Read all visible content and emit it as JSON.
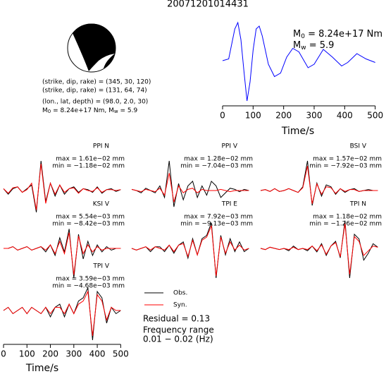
{
  "title": "20071201014431",
  "source": {
    "fault_plane_1": "(strike, dip, rake) = (345, 30, 120)",
    "fault_plane_2": "(strike, dip, rake) = (131, 64, 74)",
    "location": "(lon., lat, depth) = (98.0, 2.0, 30)",
    "moment_symbol": "M",
    "moment_subscript": "0",
    "moment_text": " = 8.24e+17 Nm, ",
    "magnitude_symbol": "M",
    "magnitude_subscript": "w",
    "magnitude_text": " = 5.9"
  },
  "chart_data": [
    {
      "type": "line",
      "color": "#0000ff",
      "annotation_moment_symbol": "M",
      "annotation_moment_subscript": "0",
      "annotation_moment_text": " = 8.24e+17 Nm",
      "annotation_magnitude_symbol": "M",
      "annotation_magnitude_subscript": "w",
      "annotation_magnitude_text": " = 5.9",
      "x": [
        0,
        20,
        40,
        50,
        60,
        70,
        80,
        90,
        100,
        110,
        120,
        130,
        150,
        170,
        190,
        210,
        230,
        250,
        280,
        300,
        330,
        360,
        390,
        410,
        440,
        470,
        500
      ],
      "values": [
        0,
        0.05,
        0.9,
        1.08,
        0.6,
        -0.3,
        -1.14,
        -0.6,
        0.3,
        0.9,
        0.98,
        0.7,
        -0.1,
        -0.45,
        -0.35,
        0.1,
        0.35,
        0.25,
        -0.2,
        -0.1,
        0.32,
        0.1,
        -0.15,
        -0.05,
        0.2,
        0.05,
        -0.05
      ],
      "xlim": [
        0,
        510
      ],
      "xticks": [
        0,
        100,
        200,
        300,
        400,
        500
      ],
      "xlabel": "Time/s"
    },
    {
      "type": "waveforms",
      "xlim": [
        0,
        520
      ],
      "xticks": [
        0,
        100,
        200,
        300,
        400,
        500
      ],
      "xlabel": "Time/s",
      "x": [
        0,
        20,
        40,
        60,
        80,
        100,
        120,
        140,
        160,
        180,
        200,
        220,
        240,
        260,
        280,
        300,
        320,
        340,
        360,
        380,
        400,
        420,
        440,
        460,
        480,
        500
      ],
      "series": [
        {
          "name": "Obs.",
          "color": "#000000"
        },
        {
          "name": "Syn.",
          "color": "#ff0000"
        }
      ],
      "residual": "Residual = 0.13",
      "frequency_title": "Frequency range",
      "frequency_range": "0.01 − 0.02 (Hz)",
      "panels": [
        {
          "title": "PPI N",
          "max_label": "max = 1.61e−02 mm",
          "min_label": "min = −1.18e−02 mm",
          "obs": [
            0.001,
            -0.002,
            0.001,
            0.002,
            -0.001,
            0.001,
            0.003,
            -0.0118,
            0.0161,
            -0.006,
            0.004,
            -0.003,
            0.003,
            -0.002,
            0.001,
            0.002,
            -0.001,
            0.001,
            0.0005,
            -0.001,
            0.002,
            -0.0015,
            0.0005,
            0.001,
            -0.0005,
            0.0005
          ],
          "syn": [
            0.001,
            -0.0015,
            0.0015,
            0.002,
            -0.001,
            0.0005,
            0.004,
            -0.0105,
            0.0145,
            -0.007,
            0.004,
            -0.002,
            0.003,
            -0.001,
            0.001,
            0.0015,
            -0.0015,
            0.001,
            0,
            -0.0005,
            0.0015,
            -0.001,
            0.0005,
            0.0005,
            0,
            0.0005
          ]
        },
        {
          "title": "PPI V",
          "max_label": "max = 1.28e−02 mm",
          "min_label": "min = −7.04e−03 mm",
          "obs": [
            0.0005,
            0,
            -0.001,
            0.001,
            0,
            -0.001,
            0.002,
            -0.003,
            0.0128,
            -0.00704,
            0.003,
            -0.004,
            0.002,
            0.004,
            -0.003,
            0.002,
            -0.002,
            0.004,
            0.002,
            -0.003,
            -0.001,
            0.001,
            0.0005,
            -0.0005,
            0.0005,
            0
          ],
          "syn": [
            0.0005,
            0,
            -0.0005,
            0.0005,
            0,
            -0.0005,
            0.001,
            -0.002,
            0.0075,
            -0.005,
            0.002,
            -0.001,
            0.0005,
            0.001,
            -0.001,
            0.0005,
            0,
            0,
            0,
            0.0005,
            0,
            -0.0005,
            0,
            0,
            0,
            0
          ]
        },
        {
          "title": "BSI V",
          "max_label": "max = 1.57e−02 mm",
          "min_label": "min = −7.92e−03 mm",
          "obs": [
            0,
            0.0005,
            -0.0005,
            0.001,
            -0.0005,
            0,
            0.001,
            0,
            -0.001,
            0.002,
            0.0157,
            -0.00792,
            0.004,
            -0.003,
            0.003,
            0.002,
            -0.002,
            0.001,
            -0.001,
            0.0005,
            0.001,
            -0.0005,
            0,
            0.0005,
            0,
            0
          ],
          "syn": [
            0,
            0.0005,
            -0.0005,
            0.001,
            -0.0005,
            0,
            0.001,
            0,
            -0.001,
            0.0015,
            0.013,
            -0.007,
            0.0035,
            -0.002,
            0.002,
            0.0015,
            -0.0015,
            0.001,
            -0.0005,
            0.0005,
            0.0005,
            -0.0005,
            0,
            0,
            0,
            0
          ]
        },
        {
          "title": "KSI V",
          "max_label": "max = 5.54e−03 mm",
          "min_label": "min = −8.42e−03 mm",
          "obs": [
            0,
            0,
            0.0005,
            -0.0005,
            0,
            0.0005,
            -0.0005,
            0,
            0.0005,
            -0.001,
            0.001,
            -0.002,
            0.003,
            -0.001,
            0.00554,
            -0.00842,
            0.004,
            -0.003,
            0.002,
            -0.002,
            0.001,
            -0.001,
            0.0005,
            -0.0005,
            0,
            0
          ],
          "syn": [
            0,
            0,
            0.0005,
            -0.0005,
            0,
            0.0005,
            -0.0005,
            0,
            0.0005,
            -0.0005,
            0.001,
            -0.0015,
            0.002,
            -0.0015,
            0.0045,
            -0.0075,
            0.0035,
            -0.0015,
            0.001,
            -0.001,
            0.0005,
            -0.0005,
            0,
            0,
            0,
            0
          ]
        },
        {
          "title": "TPI E",
          "max_label": "max = 7.92e−03 mm",
          "min_label": "min = −9.13e−03 mm",
          "obs": [
            0,
            -0.0005,
            0,
            0.0005,
            -0.001,
            0.0005,
            0.0005,
            -0.001,
            0.001,
            -0.0015,
            0.001,
            0.002,
            -0.003,
            0.003,
            -0.002,
            0.003,
            0.004,
            0.00792,
            -0.00913,
            0.004,
            -0.002,
            0.003,
            -0.001,
            0.002,
            -0.001,
            0
          ],
          "syn": [
            0,
            -0.0005,
            0,
            0.0005,
            -0.0005,
            0.0005,
            0,
            -0.0005,
            0.001,
            -0.001,
            0.001,
            0.0015,
            -0.0025,
            0.0025,
            -0.002,
            0.0025,
            0.0035,
            0.007,
            -0.0085,
            0.0035,
            -0.0015,
            0.002,
            -0.0005,
            0.001,
            -0.0005,
            0
          ]
        },
        {
          "title": "TPI N",
          "max_label": "max = 1.18e−02 mm",
          "min_label": "min = −1.26e−02 mm",
          "obs": [
            0,
            -0.0005,
            0.0005,
            0,
            -0.0005,
            0,
            -0.001,
            0.001,
            -0.0005,
            0,
            -0.001,
            0.001,
            -0.0015,
            0.002,
            -0.003,
            0.001,
            0.003,
            -0.004,
            0.0118,
            -0.0126,
            0.006,
            0.004,
            -0.005,
            -0.002,
            0.002,
            0.0005
          ],
          "syn": [
            0,
            -0.0005,
            0.0005,
            0,
            -0.0005,
            0,
            -0.0005,
            0.0005,
            -0.0005,
            0,
            -0.0005,
            0.001,
            -0.001,
            0.0015,
            -0.0025,
            0.001,
            0.0025,
            -0.0035,
            0.0105,
            -0.011,
            0.005,
            0.003,
            -0.003,
            -0.001,
            0.001,
            0.0005
          ]
        },
        {
          "title": "TPI V",
          "max_label": "max = 3.59e−03 mm",
          "min_label": "min = −4.68e−03 mm",
          "obs": [
            0,
            0.0005,
            -0.0005,
            0,
            0.0005,
            -0.0005,
            0.0005,
            0,
            -0.0005,
            0.0005,
            -0.001,
            0.0005,
            0.001,
            -0.001,
            0.001,
            -0.0005,
            0.0015,
            0.002,
            0.00359,
            -0.00468,
            0.003,
            0.002,
            -0.002,
            0.0005,
            -0.0005,
            0
          ],
          "syn": [
            0,
            0.0005,
            -0.0005,
            0,
            0.0005,
            -0.0005,
            0.0005,
            0,
            -0.0005,
            0.0005,
            -0.0005,
            0.0005,
            0.0005,
            -0.0005,
            0.001,
            -0.0005,
            0.001,
            0.0015,
            0.003,
            -0.004,
            0.0025,
            0.0015,
            -0.0015,
            0.0005,
            0,
            0
          ]
        }
      ]
    }
  ]
}
